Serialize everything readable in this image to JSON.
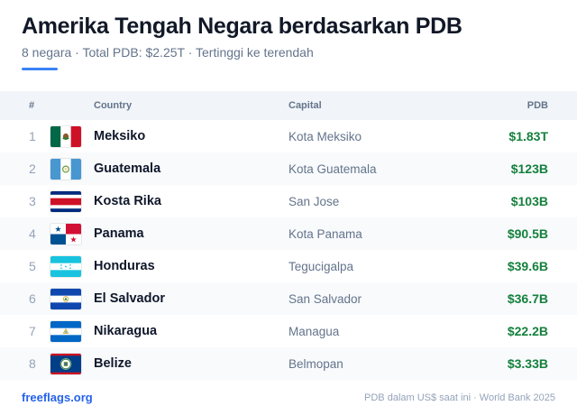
{
  "header": {
    "title": "Amerika Tengah Negara berdasarkan PDB",
    "subtitle": "8 negara · Total PDB: $2.25T · Tertinggi ke terendah"
  },
  "table": {
    "columns": {
      "num": "#",
      "country": "Country",
      "capital": "Capital",
      "pdb": "PDB"
    },
    "rows": [
      {
        "rank": "1",
        "country": "Meksiko",
        "capital": "Kota Meksiko",
        "pdb": "$1.83T",
        "flag": "mexico-flag-icon"
      },
      {
        "rank": "2",
        "country": "Guatemala",
        "capital": "Kota Guatemala",
        "pdb": "$123B",
        "flag": "guatemala-flag-icon"
      },
      {
        "rank": "3",
        "country": "Kosta Rika",
        "capital": "San Jose",
        "pdb": "$103B",
        "flag": "costa-rica-flag-icon"
      },
      {
        "rank": "4",
        "country": "Panama",
        "capital": "Kota Panama",
        "pdb": "$90.5B",
        "flag": "panama-flag-icon"
      },
      {
        "rank": "5",
        "country": "Honduras",
        "capital": "Tegucigalpa",
        "pdb": "$39.6B",
        "flag": "honduras-flag-icon"
      },
      {
        "rank": "6",
        "country": "El Salvador",
        "capital": "San Salvador",
        "pdb": "$36.7B",
        "flag": "el-salvador-flag-icon"
      },
      {
        "rank": "7",
        "country": "Nikaragua",
        "capital": "Managua",
        "pdb": "$22.2B",
        "flag": "nicaragua-flag-icon"
      },
      {
        "rank": "8",
        "country": "Belize",
        "capital": "Belmopan",
        "pdb": "$3.33B",
        "flag": "belize-flag-icon"
      }
    ]
  },
  "footer": {
    "brand": "freeflags.org",
    "source": "PDB dalam US$ saat ini · World Bank 2025"
  },
  "colors": {
    "accent": "#3b82f6",
    "pdb_value": "#15803d",
    "brand_link": "#2563eb"
  }
}
